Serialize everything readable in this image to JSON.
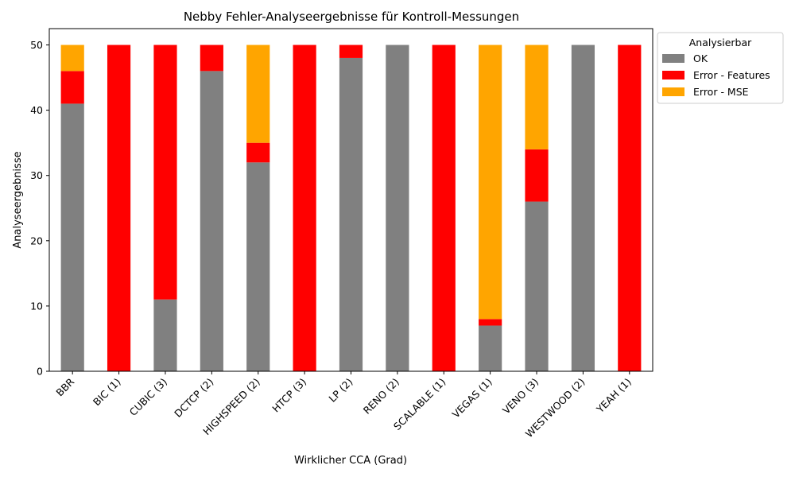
{
  "chart_data": {
    "type": "bar",
    "stacked": true,
    "title": "Nebby Fehler-Analyseergebnisse für Kontroll-Messungen",
    "xlabel": "Wirklicher CCA (Grad)",
    "ylabel": "Analyseergebnisse",
    "ylim": [
      0,
      52.5
    ],
    "yticks": [
      0,
      10,
      20,
      30,
      40,
      50
    ],
    "categories": [
      "BBR",
      "BIC (1)",
      "CUBIC (3)",
      "DCTCP (2)",
      "HIGHSPEED (2)",
      "HTCP (3)",
      "LP (2)",
      "RENO (2)",
      "SCALABLE (1)",
      "VEGAS (1)",
      "VENO (3)",
      "WESTWOOD (2)",
      "YEAH (1)"
    ],
    "series": [
      {
        "name": "OK",
        "color": "#808080",
        "values": [
          41,
          0,
          11,
          46,
          32,
          0,
          48,
          50,
          0,
          7,
          26,
          50,
          0
        ]
      },
      {
        "name": "Error - Features",
        "color": "#ff0000",
        "values": [
          5,
          50,
          39,
          4,
          3,
          50,
          2,
          0,
          50,
          1,
          8,
          0,
          50
        ]
      },
      {
        "name": "Error - MSE",
        "color": "#ffa500",
        "values": [
          4,
          0,
          0,
          0,
          15,
          0,
          0,
          0,
          0,
          42,
          16,
          0,
          0
        ]
      }
    ],
    "legend": {
      "title": "Analysierbar",
      "placement": "outside-top-right"
    },
    "grid": false
  }
}
